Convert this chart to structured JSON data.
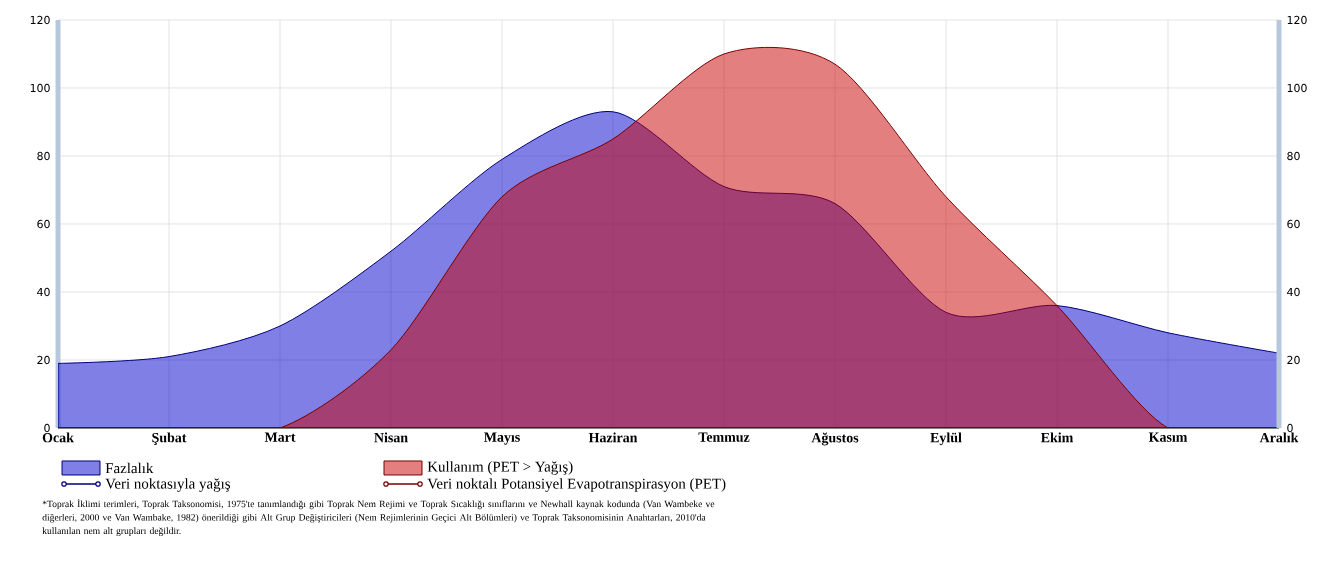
{
  "chart_data": {
    "type": "area",
    "categories": [
      "Ocak",
      "Şubat",
      "Mart",
      "Nisan",
      "Mayıs",
      "Haziran",
      "Temmuz",
      "Ağustos",
      "Eylül",
      "Ekim",
      "Kasım",
      "Aralık"
    ],
    "series": [
      {
        "name": "Fazlalık",
        "color": "#0000cc",
        "values": [
          19,
          21,
          30,
          52,
          79,
          93,
          71,
          66,
          34,
          36,
          28,
          22
        ]
      },
      {
        "name": "Kullanım (PET > Yağış)",
        "color": "#c80000",
        "values": [
          0,
          0,
          0,
          23,
          68,
          85,
          110,
          107,
          68,
          36,
          0,
          0
        ]
      }
    ],
    "ylim": [
      0,
      120
    ],
    "yticks": [
      0,
      20,
      40,
      60,
      80,
      100,
      120
    ],
    "y2lim": [
      0,
      120
    ],
    "y2ticks": [
      0,
      20,
      40,
      60,
      80,
      100,
      120
    ],
    "grid": true,
    "legend": "bottom",
    "annotations": [
      "Veri noktasıyla yağış",
      "Veri noktalı Potansiyel Evapotranspirasyon (PET)",
      "*Toprak İklimi terimleri, Toprak Taksonomisi, 1975'te tanımlandığı gibi Toprak Nem Rejimi ve Toprak Sıcaklığı sınıflarını ve Newhall kaynak kodunda (Van Wambeke ve diğerleri, 2000 ve Van Wambake, 1982) önerildiği gibi Alt Grup Değiştiricileri (Nem Rejimlerinin Geçici Alt Bölümleri) ve Toprak Taksonomisinin Anahtarları, 2010'da kullanılan nem alt grupları değildir."
    ]
  }
}
